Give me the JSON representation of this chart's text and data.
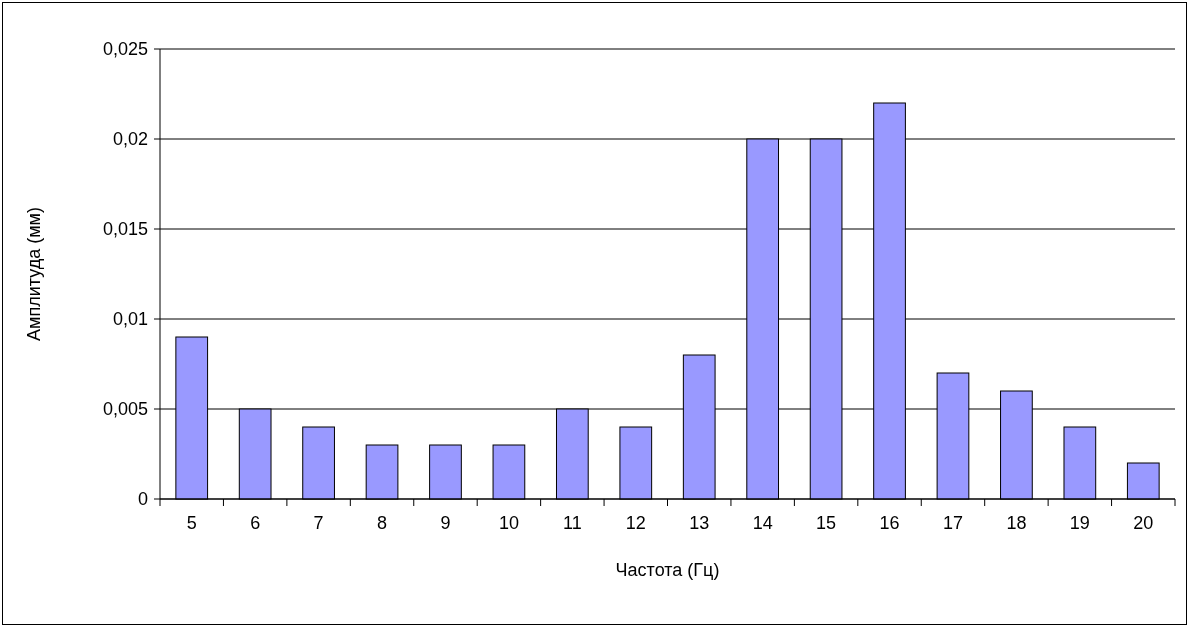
{
  "chart_data": {
    "type": "bar",
    "xlabel": "Частота (Гц)",
    "ylabel": "Амплитуда (мм)",
    "categories": [
      "5",
      "6",
      "7",
      "8",
      "9",
      "10",
      "11",
      "12",
      "13",
      "14",
      "15",
      "16",
      "17",
      "18",
      "19",
      "20"
    ],
    "values": [
      0.009,
      0.005,
      0.004,
      0.003,
      0.003,
      0.003,
      0.005,
      0.004,
      0.008,
      0.02,
      0.02,
      0.022,
      0.007,
      0.006,
      0.004,
      0.002
    ],
    "color": "#9999ff",
    "ylim": [
      0,
      0.025
    ],
    "yticks": [
      0,
      {
        "value": 0.005,
        "label": "0,005"
      },
      {
        "value": 0.01,
        "label": "0,01"
      },
      {
        "value": 0.015,
        "label": "0,015"
      },
      {
        "value": 0.02,
        "label": "0,02"
      },
      {
        "value": 0.025,
        "label": "0,025"
      }
    ],
    "grid": "y"
  }
}
